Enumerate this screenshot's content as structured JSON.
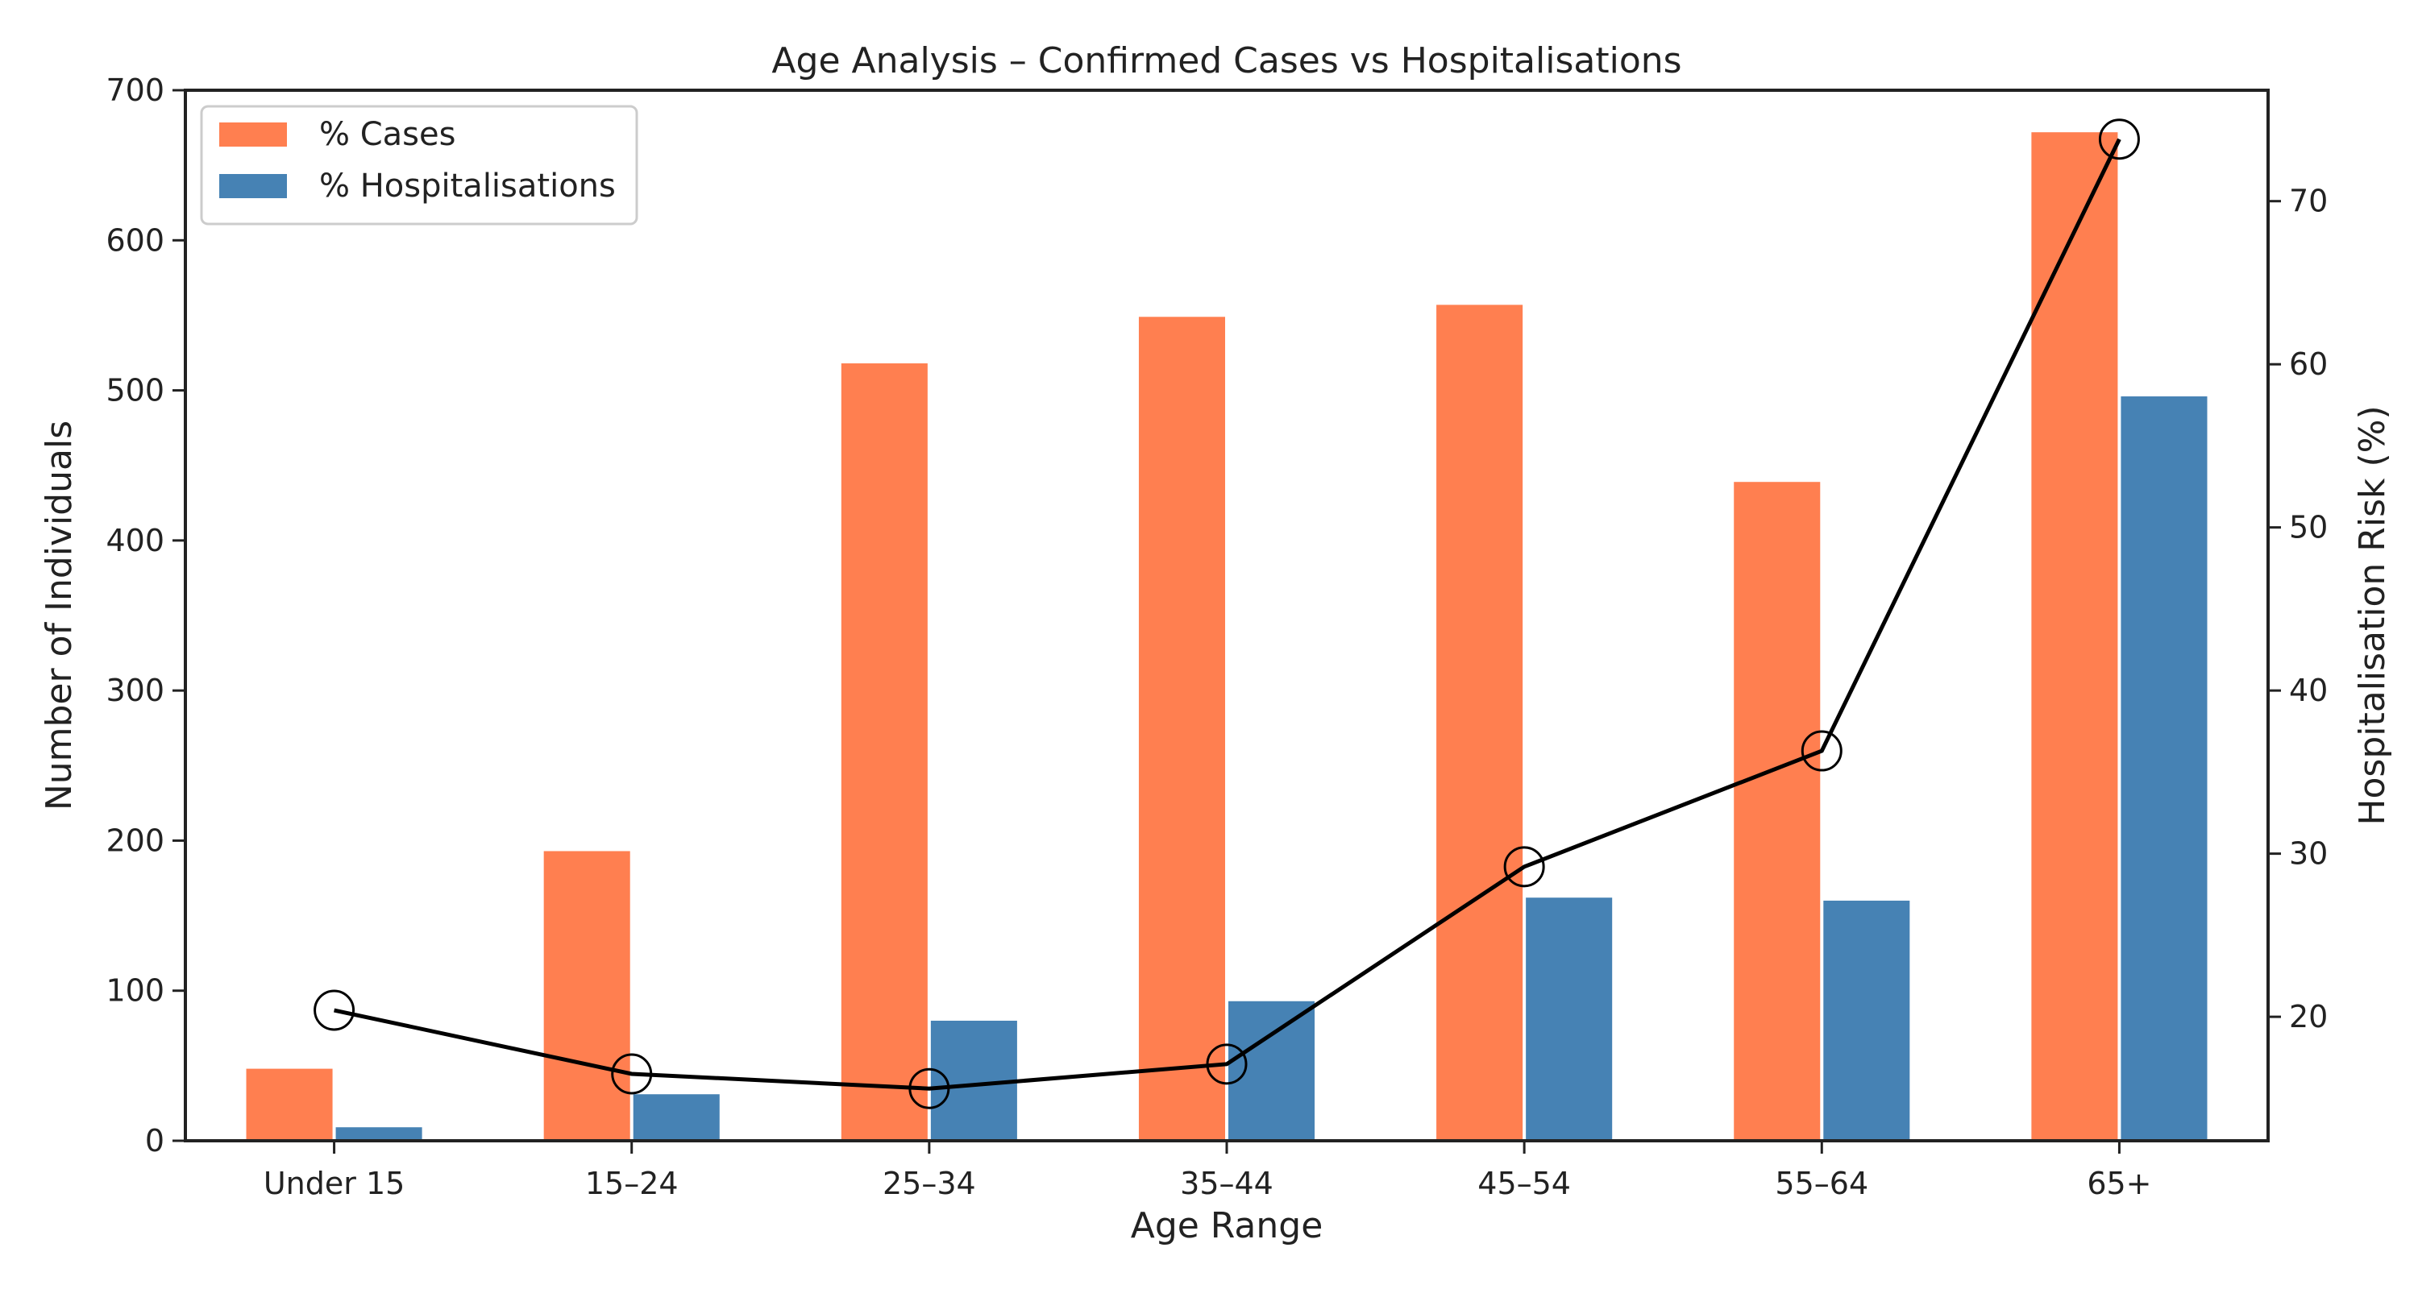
{
  "chart_data": {
    "type": "bar",
    "title": "Age Analysis – Confirmed Cases vs Hospitalisations",
    "xlabel": "Age Range",
    "ylabel": "Number of Individuals",
    "y2label": "Hospitalisation Risk (%)",
    "categories": [
      "Under 15",
      "15–24",
      "25–34",
      "35–44",
      "45–54",
      "55–64",
      "65+"
    ],
    "series": [
      {
        "name": "% Cases",
        "type": "bar",
        "axis": "left",
        "color": "#FF7F50",
        "values": [
          48,
          193,
          518,
          549,
          557,
          439,
          672
        ]
      },
      {
        "name": "% Hospitalisations",
        "type": "bar",
        "axis": "left",
        "color": "#4682B4",
        "values": [
          9,
          31,
          80,
          93,
          162,
          160,
          496
        ]
      },
      {
        "type": "line",
        "axis": "right",
        "color": "#000000",
        "marker": "open-circle",
        "values": [
          20.4,
          16.5,
          15.6,
          17.1,
          29.2,
          36.3,
          73.8
        ]
      }
    ],
    "ylim": [
      0,
      700
    ],
    "yticks": [
      0,
      100,
      200,
      300,
      400,
      500,
      600,
      700
    ],
    "y2lim": [
      12.4,
      76.8
    ],
    "y2ticks": [
      20,
      30,
      40,
      50,
      60,
      70
    ],
    "grid": false,
    "legend_position": "top-left"
  }
}
